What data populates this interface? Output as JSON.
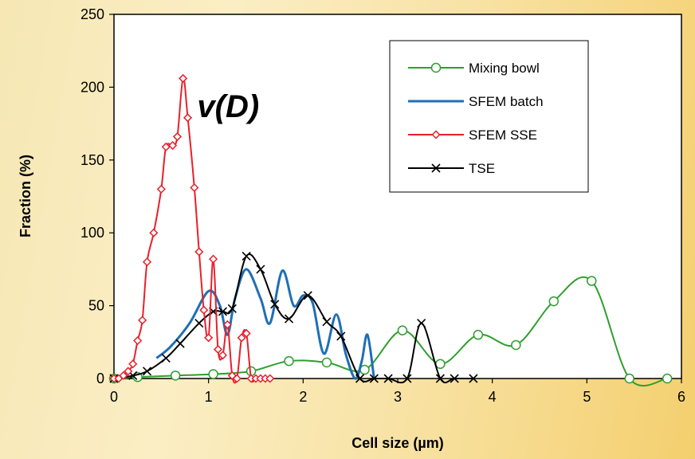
{
  "chart_data": {
    "type": "line",
    "xlabel": "Cell size (µm)",
    "ylabel": "Fraction (%)",
    "xlim": [
      0,
      6
    ],
    "ylim": [
      0,
      250
    ],
    "xticks": [
      0,
      1,
      2,
      3,
      4,
      5,
      6
    ],
    "yticks": [
      0,
      50,
      100,
      150,
      200,
      250
    ],
    "grid": false,
    "legend_position": "top-right",
    "annotation": {
      "text_main": "v(",
      "text_italic": "D",
      "text_close": ")",
      "x": 0.88,
      "y": 187
    },
    "series": [
      {
        "name": "Mixing bowl",
        "color": "#2e9e2e",
        "marker": "circle",
        "points": [
          [
            0.0,
            0
          ],
          [
            0.25,
            1
          ],
          [
            0.65,
            2
          ],
          [
            1.05,
            3
          ],
          [
            1.45,
            5
          ],
          [
            1.85,
            12
          ],
          [
            2.25,
            11
          ],
          [
            2.65,
            6
          ],
          [
            3.05,
            33
          ],
          [
            3.45,
            10
          ],
          [
            3.85,
            30
          ],
          [
            4.25,
            23
          ],
          [
            4.65,
            53
          ],
          [
            5.05,
            67
          ],
          [
            5.45,
            0
          ],
          [
            5.85,
            0
          ]
        ]
      },
      {
        "name": "SFEM batch",
        "color": "#1f6fb5",
        "marker": "none",
        "points": [
          [
            0.45,
            14
          ],
          [
            0.6,
            22
          ],
          [
            0.8,
            38
          ],
          [
            1.0,
            60
          ],
          [
            1.12,
            50
          ],
          [
            1.2,
            30
          ],
          [
            1.28,
            55
          ],
          [
            1.4,
            75
          ],
          [
            1.55,
            55
          ],
          [
            1.65,
            38
          ],
          [
            1.78,
            74
          ],
          [
            1.9,
            50
          ],
          [
            2.0,
            57
          ],
          [
            2.1,
            52
          ],
          [
            2.22,
            17
          ],
          [
            2.35,
            44
          ],
          [
            2.45,
            17
          ],
          [
            2.55,
            0
          ],
          [
            2.62,
            12
          ],
          [
            2.68,
            30
          ],
          [
            2.75,
            0
          ]
        ]
      },
      {
        "name": "SFEM SSE",
        "color": "#e8202a",
        "marker": "diamond",
        "points": [
          [
            0.0,
            0
          ],
          [
            0.05,
            0
          ],
          [
            0.1,
            2
          ],
          [
            0.15,
            5
          ],
          [
            0.2,
            10
          ],
          [
            0.25,
            26
          ],
          [
            0.3,
            40
          ],
          [
            0.35,
            80
          ],
          [
            0.42,
            100
          ],
          [
            0.5,
            130
          ],
          [
            0.55,
            159
          ],
          [
            0.62,
            160
          ],
          [
            0.67,
            166
          ],
          [
            0.73,
            206
          ],
          [
            0.78,
            179
          ],
          [
            0.85,
            131
          ],
          [
            0.9,
            87
          ],
          [
            0.95,
            47
          ],
          [
            1.0,
            28
          ],
          [
            1.05,
            82
          ],
          [
            1.1,
            20
          ],
          [
            1.15,
            16
          ],
          [
            1.2,
            37
          ],
          [
            1.25,
            2
          ],
          [
            1.3,
            0
          ],
          [
            1.35,
            28
          ],
          [
            1.4,
            31
          ],
          [
            1.45,
            0
          ],
          [
            1.5,
            0
          ],
          [
            1.55,
            0
          ],
          [
            1.6,
            0
          ],
          [
            1.65,
            0
          ]
        ]
      },
      {
        "name": "TSE",
        "color": "#000000",
        "marker": "x",
        "points": [
          [
            0.0,
            0
          ],
          [
            0.2,
            2
          ],
          [
            0.35,
            5
          ],
          [
            0.55,
            14
          ],
          [
            0.7,
            24
          ],
          [
            0.9,
            38
          ],
          [
            1.05,
            46
          ],
          [
            1.15,
            46
          ],
          [
            1.25,
            48
          ],
          [
            1.4,
            84
          ],
          [
            1.55,
            75
          ],
          [
            1.7,
            51
          ],
          [
            1.85,
            41
          ],
          [
            2.05,
            57
          ],
          [
            2.25,
            39
          ],
          [
            2.4,
            29
          ],
          [
            2.6,
            0
          ],
          [
            2.75,
            0
          ],
          [
            2.9,
            0
          ],
          [
            3.1,
            0
          ],
          [
            3.25,
            38
          ],
          [
            3.45,
            0
          ],
          [
            3.6,
            0
          ],
          [
            3.8,
            0
          ]
        ]
      }
    ]
  }
}
